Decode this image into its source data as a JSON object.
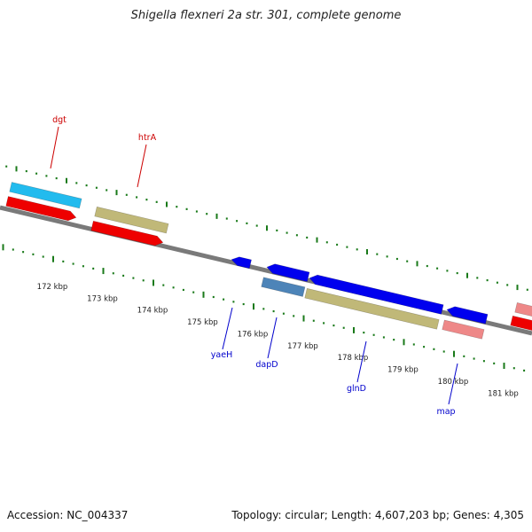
{
  "title": "Shigella flexneri 2a str. 301, complete genome",
  "accession_text": "Accession: NC_004337",
  "topology_text": "Topology: circular; Length: 4,607,203 bp; Genes: 4,305",
  "colors": {
    "backbone": "#7a7a7a",
    "tick": "#1a7a1a",
    "top_label": "#cc0000",
    "bottom_label": "#0000cc",
    "cyan": "#22bbee",
    "red": "#ee0000",
    "khaki": "#c0b878",
    "blue": "#0000ee",
    "steel": "#4d84b8",
    "pink": "#ee8888"
  },
  "kbp_labels": [
    "172 kbp",
    "173 kbp",
    "174 kbp",
    "175 kbp",
    "176 kbp",
    "177 kbp",
    "178 kbp",
    "179 kbp",
    "180 kbp",
    "181 kbp"
  ],
  "top_labels": [
    "dgt",
    "htrA"
  ],
  "bottom_labels": [
    "yaeH",
    "dapD",
    "glnD",
    "map"
  ]
}
